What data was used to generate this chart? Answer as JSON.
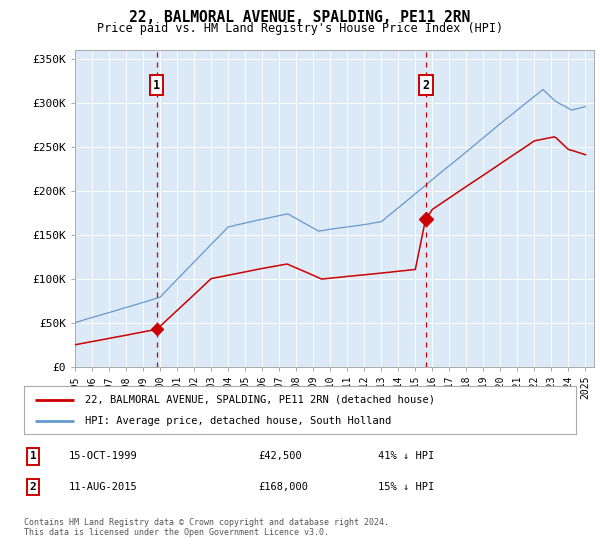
{
  "title": "22, BALMORAL AVENUE, SPALDING, PE11 2RN",
  "subtitle": "Price paid vs. HM Land Registry's House Price Index (HPI)",
  "background_color": "#dce9f7",
  "plot_bg_color": "#dce9f7",
  "red_line_color": "#cc0000",
  "blue_line_color": "#6699cc",
  "vline_color": "#cc0000",
  "sale1_date": 1999.79,
  "sale1_label": "1",
  "sale1_price": 42500,
  "sale2_date": 2015.62,
  "sale2_label": "2",
  "sale2_price": 168000,
  "legend_line1": "22, BALMORAL AVENUE, SPALDING, PE11 2RN (detached house)",
  "legend_line2": "HPI: Average price, detached house, South Holland",
  "table_row1_num": "1",
  "table_row1_date": "15-OCT-1999",
  "table_row1_price": "£42,500",
  "table_row1_hpi": "41% ↓ HPI",
  "table_row2_num": "2",
  "table_row2_date": "11-AUG-2015",
  "table_row2_price": "£168,000",
  "table_row2_hpi": "15% ↓ HPI",
  "footer": "Contains HM Land Registry data © Crown copyright and database right 2024.\nThis data is licensed under the Open Government Licence v3.0.",
  "ylim": [
    0,
    360000
  ],
  "yticks": [
    0,
    50000,
    100000,
    150000,
    200000,
    250000,
    300000,
    350000
  ],
  "ytick_labels": [
    "£0",
    "£50K",
    "£100K",
    "£150K",
    "£200K",
    "£250K",
    "£300K",
    "£350K"
  ],
  "xlim_start": 1995.0,
  "xlim_end": 2025.5
}
